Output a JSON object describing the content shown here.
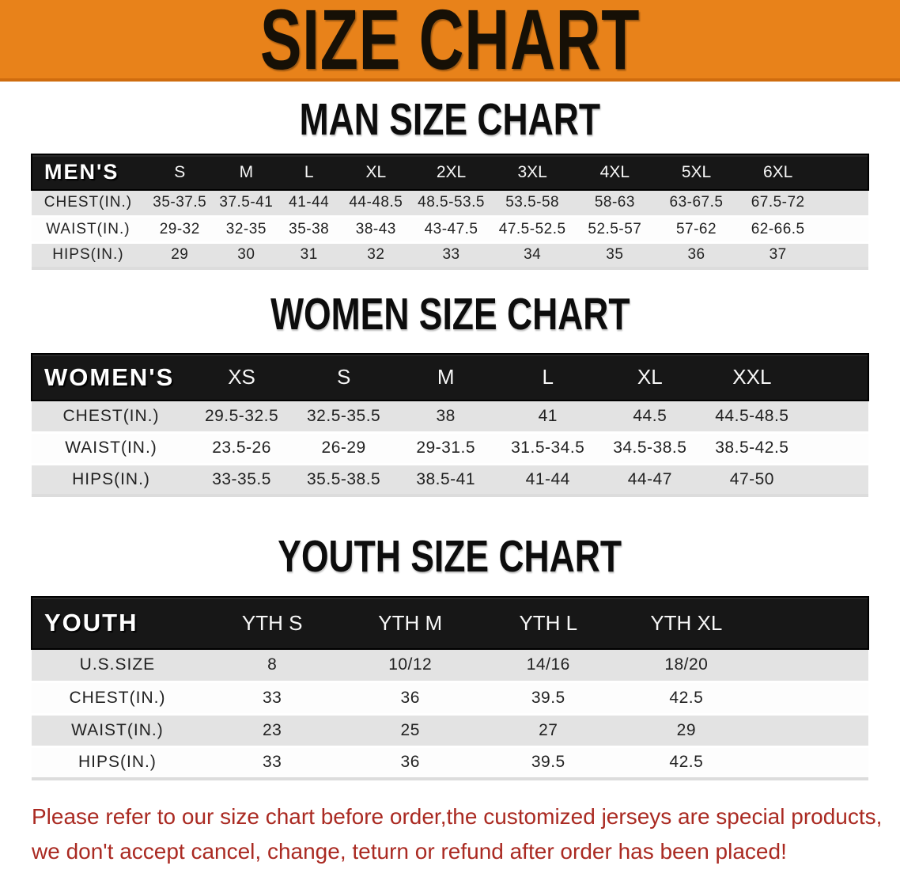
{
  "banner": {
    "title": "SIZE CHART"
  },
  "sections": [
    {
      "title": "MAN SIZE CHART",
      "label": "MEN'S",
      "columns": [
        "S",
        "M",
        "L",
        "XL",
        "2XL",
        "3XL",
        "4XL",
        "5XL",
        "6XL"
      ],
      "rows": [
        {
          "label": "CHEST(IN.)",
          "values": [
            "35-37.5",
            "37.5-41",
            "41-44",
            "44-48.5",
            "48.5-53.5",
            "53.5-58",
            "58-63",
            "63-67.5",
            "67.5-72"
          ]
        },
        {
          "label": "WAIST(IN.)",
          "values": [
            "29-32",
            "32-35",
            "35-38",
            "38-43",
            "43-47.5",
            "47.5-52.5",
            "52.5-57",
            "57-62",
            "62-66.5"
          ]
        },
        {
          "label": "HIPS(IN.)",
          "values": [
            "29",
            "30",
            "31",
            "32",
            "33",
            "34",
            "35",
            "36",
            "37"
          ]
        }
      ]
    },
    {
      "title": "WOMEN SIZE CHART",
      "label": "WOMEN'S",
      "columns": [
        "XS",
        "S",
        "M",
        "L",
        "XL",
        "XXL"
      ],
      "rows": [
        {
          "label": "CHEST(IN.)",
          "values": [
            "29.5-32.5",
            "32.5-35.5",
            "38",
            "41",
            "44.5",
            "44.5-48.5"
          ]
        },
        {
          "label": "WAIST(IN.)",
          "values": [
            "23.5-26",
            "26-29",
            "29-31.5",
            "31.5-34.5",
            "34.5-38.5",
            "38.5-42.5"
          ]
        },
        {
          "label": "HIPS(IN.)",
          "values": [
            "33-35.5",
            "35.5-38.5",
            "38.5-41",
            "41-44",
            "44-47",
            "47-50"
          ]
        }
      ]
    },
    {
      "title": "YOUTH SIZE CHART",
      "label": "YOUTH",
      "columns": [
        "YTH S",
        "YTH M",
        "YTH L",
        "YTH XL"
      ],
      "rows": [
        {
          "label": "U.S.SIZE",
          "values": [
            "8",
            "10/12",
            "14/16",
            "18/20"
          ]
        },
        {
          "label": "CHEST(IN.)",
          "values": [
            "33",
            "36",
            "39.5",
            "42.5"
          ]
        },
        {
          "label": "WAIST(IN.)",
          "values": [
            "23",
            "25",
            "27",
            "29"
          ]
        },
        {
          "label": "HIPS(IN.)",
          "values": [
            "33",
            "36",
            "39.5",
            "42.5"
          ]
        }
      ]
    }
  ],
  "disclaimer": {
    "line1": "Please refer to our size chart before order,the customized jerseys are special products,",
    "line2": "we don't accept cancel, change, teturn or refund after order has been placed!"
  },
  "colors": {
    "banner_bg": "#e8821a",
    "banner_border": "#cf6c0e",
    "header_bar": "#171717",
    "row_stripe": "#e3e3e3",
    "disclaimer_text": "#aa2a22"
  }
}
